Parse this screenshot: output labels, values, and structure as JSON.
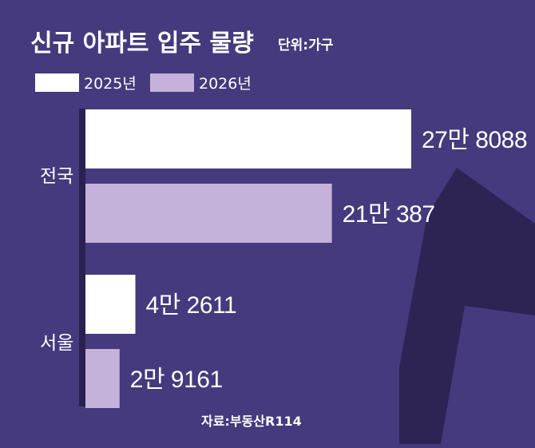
{
  "chart_data": {
    "type": "bar",
    "orientation": "horizontal",
    "title": "신규 아파트 입주 물량",
    "unit_label": "단위:가구",
    "categories": [
      "전국",
      "서울"
    ],
    "series": [
      {
        "name": "2025년",
        "values": [
          278088,
          42611
        ],
        "labels": [
          "27만 8088",
          "4만 2611"
        ],
        "color": "#ffffff"
      },
      {
        "name": "2026년",
        "values": [
          210387,
          29161
        ],
        "labels": [
          "21만 387",
          "2만 9161"
        ],
        "color": "#c5b2da"
      }
    ],
    "legend_position": "top-left",
    "grid": false,
    "source": "자료:부동산R114"
  },
  "colors": {
    "background": "#443a7d",
    "accent_shape": "#2d2454",
    "axis_line": "#2a2150"
  }
}
